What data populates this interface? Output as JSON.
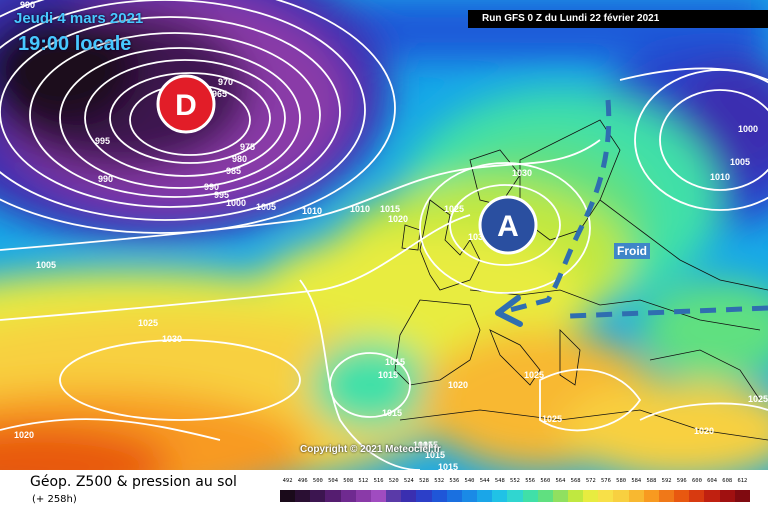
{
  "header": {
    "date": "Jeudi 4 mars 2021",
    "time": "19:00 locale",
    "run": "Run GFS 0 Z du Lundi 22 février 2021"
  },
  "map": {
    "low_symbol": "D",
    "high_symbol": "A",
    "cold_label": "Froid",
    "copyright": "Copyright © 2021 Meteociel.fr",
    "isobar_labels": [
      "990",
      "970",
      "965",
      "975",
      "980",
      "985",
      "990",
      "995",
      "1000",
      "1005",
      "1010",
      "995",
      "990",
      "1005",
      "1010",
      "1015",
      "1020",
      "1025",
      "1030",
      "1025",
      "1030",
      "1015",
      "1020",
      "1025",
      "1015",
      "1015",
      "1025",
      "1020",
      "1015",
      "1020",
      "1000",
      "1005",
      "1010",
      "1025",
      "1030",
      "1015",
      "1015",
      "1015"
    ]
  },
  "legend": {
    "title": "Géop. Z500 & pression au sol",
    "lead": "(+ 258h)",
    "ticks": [
      "492",
      "496",
      "500",
      "504",
      "508",
      "512",
      "516",
      "520",
      "524",
      "528",
      "532",
      "536",
      "540",
      "544",
      "548",
      "552",
      "556",
      "560",
      "564",
      "568",
      "572",
      "576",
      "580",
      "584",
      "588",
      "592",
      "596",
      "600",
      "604",
      "608",
      "612"
    ],
    "colors": [
      "#1a0a1a",
      "#2a0f33",
      "#3c1550",
      "#551d70",
      "#6f2a90",
      "#8a3aa8",
      "#a04cc0",
      "#5a3aa8",
      "#3a2fb0",
      "#2c3fc8",
      "#1f56d8",
      "#1a70e0",
      "#1a8ae6",
      "#1aa6e8",
      "#20c2e6",
      "#30d6d0",
      "#40e0a8",
      "#60e080",
      "#90e060",
      "#c0e840",
      "#e8ec40",
      "#f8e048",
      "#f8d040",
      "#f8b830",
      "#f89a20",
      "#f07818",
      "#e85810",
      "#d83a10",
      "#c02010",
      "#a01010",
      "#800a10"
    ]
  }
}
